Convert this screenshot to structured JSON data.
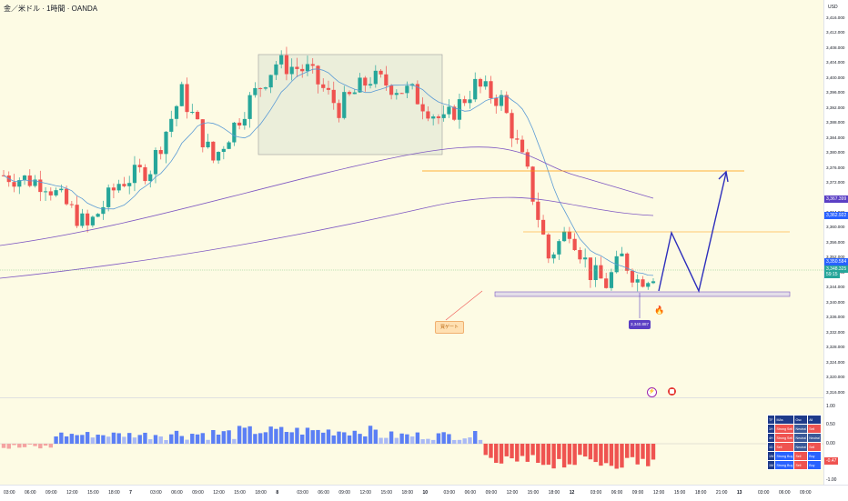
{
  "header": {
    "title": "金／米ドル · 1時間 · OANDA",
    "currency": "USD"
  },
  "price_axis": {
    "ticks": [
      "3,416.000",
      "3,412.000",
      "3,408.000",
      "3,404.000",
      "3,400.000",
      "3,396.000",
      "3,392.000",
      "3,388.000",
      "3,384.000",
      "3,380.000",
      "3,376.000",
      "3,372.000",
      "3,368.000",
      "3,364.000",
      "3,360.000",
      "3,356.000",
      "3,352.000",
      "3,348.000",
      "3,344.000",
      "3,340.000",
      "3,336.000",
      "3,332.000",
      "3,328.000",
      "3,324.000",
      "3,320.000",
      "3,316.000"
    ],
    "tags": [
      {
        "label": "3,367.399",
        "color": "#5b3fc4"
      },
      {
        "label": "3,362.922",
        "color": "#2962ff"
      },
      {
        "label": "3,350.584",
        "color": "#2962ff"
      },
      {
        "label": "3,348.325",
        "color": "#26a69a"
      },
      {
        "label": "59:15",
        "color": "#26a69a"
      }
    ]
  },
  "osc_axis": {
    "ticks": [
      "1.00",
      "0.50",
      "0.00",
      "-0.50",
      "-1.00"
    ],
    "current": "-0.47",
    "current_color": "#ef5350"
  },
  "time_axis": [
    "03:00",
    "06:00",
    "09:00",
    "12:00",
    "15:00",
    "18:00",
    "7",
    "03:00",
    "06:00",
    "09:00",
    "12:00",
    "15:00",
    "18:00",
    "8",
    "03:00",
    "06:00",
    "09:00",
    "12:00",
    "15:00",
    "18:00",
    "10",
    "03:00",
    "06:00",
    "09:00",
    "12:00",
    "15:00",
    "18:00",
    "12",
    "03:00",
    "06:00",
    "09:00",
    "12:00",
    "15:00",
    "18:00",
    "21:00",
    "13",
    "03:00",
    "06:00",
    "09:00"
  ],
  "annotations": {
    "note": "買ゲート",
    "low_label": "3,340.887"
  },
  "ta_table": {
    "headers": [
      "TF",
      "MAs",
      "Osc",
      "All"
    ],
    "rows": [
      {
        "tf": "1H",
        "mas": "Strong Sell",
        "osc": "Neutral",
        "all": "Sell"
      },
      {
        "tf": "4H",
        "mas": "Strong Sell",
        "osc": "Neutral",
        "all": "Neutral"
      },
      {
        "tf": "1D",
        "mas": "Sell",
        "osc": "Neutral",
        "all": "Sell"
      },
      {
        "tf": "1W",
        "mas": "Strong Buy",
        "osc": "Sell",
        "all": "Buy"
      },
      {
        "tf": "1M",
        "mas": "Strong Buy",
        "osc": "Sell",
        "all": "Buy"
      }
    ]
  },
  "colors": {
    "up": "#26a69a",
    "down": "#ef5350",
    "ma_fast": "#5b9bd5",
    "ma_slow": "#7e57c2",
    "level": "#ff9800",
    "projection": "#2d2ebc"
  },
  "icons": {
    "fire": "fire-icon",
    "lightning": "lightning-event-icon",
    "flag": "us-flag-event-icon"
  }
}
